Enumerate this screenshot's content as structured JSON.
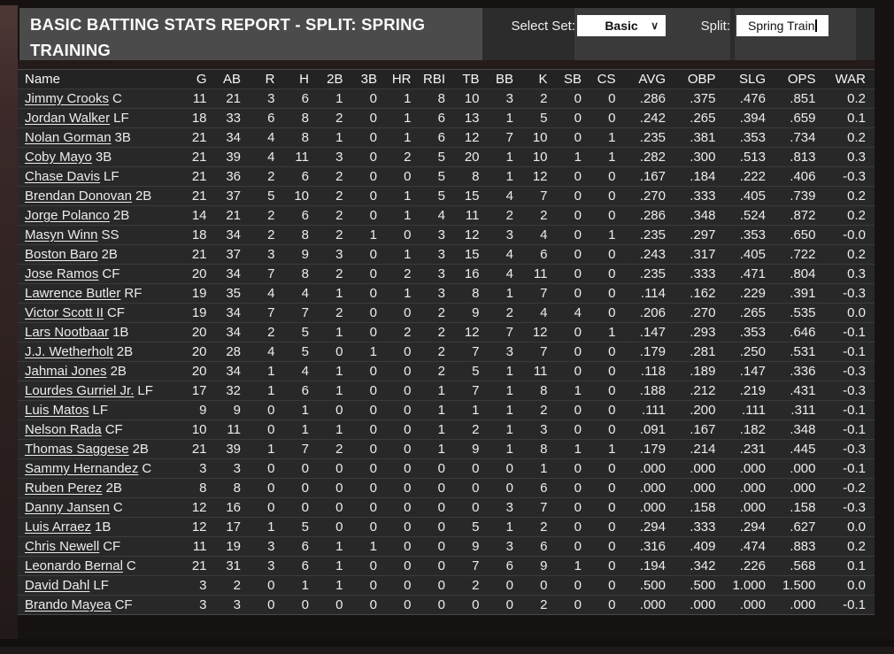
{
  "header": {
    "title": "BASIC BATTING STATS REPORT - SPLIT: SPRING TRAINING",
    "select_set_label": "Select Set:",
    "select_set_value": "Basic",
    "dropdown_chevron": "∨",
    "split_label": "Split:",
    "split_value": "Spring Train"
  },
  "colors": {
    "title_box_bg": "#4b4b4b",
    "header_bar_bg": "#2c2c2c",
    "inset_panel_bg": "#3a3a3a",
    "table_header_bg": "#232323",
    "row_bg": "#282828",
    "row_divider": "#3b3b3b",
    "left_gutter_maroon": "#3a2928",
    "field_bg": "#ffffff"
  },
  "table": {
    "columns": [
      "Name",
      "G",
      "AB",
      "R",
      "H",
      "2B",
      "3B",
      "HR",
      "RBI",
      "TB",
      "BB",
      "K",
      "SB",
      "CS",
      "AVG",
      "OBP",
      "SLG",
      "OPS",
      "WAR"
    ],
    "rows": [
      {
        "name": "Jimmy Crooks",
        "pos": "C",
        "stats": [
          11,
          21,
          3,
          6,
          1,
          0,
          1,
          8,
          10,
          3,
          2,
          0,
          0,
          ".286",
          ".375",
          ".476",
          ".851",
          "0.2"
        ]
      },
      {
        "name": "Jordan Walker",
        "pos": "LF",
        "stats": [
          18,
          33,
          6,
          8,
          2,
          0,
          1,
          6,
          13,
          1,
          5,
          0,
          0,
          ".242",
          ".265",
          ".394",
          ".659",
          "0.1"
        ]
      },
      {
        "name": "Nolan Gorman",
        "pos": "3B",
        "stats": [
          21,
          34,
          4,
          8,
          1,
          0,
          1,
          6,
          12,
          7,
          10,
          0,
          1,
          ".235",
          ".381",
          ".353",
          ".734",
          "0.2"
        ]
      },
      {
        "name": "Coby Mayo",
        "pos": "3B",
        "stats": [
          21,
          39,
          4,
          11,
          3,
          0,
          2,
          5,
          20,
          1,
          10,
          1,
          1,
          ".282",
          ".300",
          ".513",
          ".813",
          "0.3"
        ]
      },
      {
        "name": "Chase Davis",
        "pos": "LF",
        "stats": [
          21,
          36,
          2,
          6,
          2,
          0,
          0,
          5,
          8,
          1,
          12,
          0,
          0,
          ".167",
          ".184",
          ".222",
          ".406",
          "-0.3"
        ]
      },
      {
        "name": "Brendan Donovan",
        "pos": "2B",
        "stats": [
          21,
          37,
          5,
          10,
          2,
          0,
          1,
          5,
          15,
          4,
          7,
          0,
          0,
          ".270",
          ".333",
          ".405",
          ".739",
          "0.2"
        ]
      },
      {
        "name": "Jorge Polanco",
        "pos": "2B",
        "stats": [
          14,
          21,
          2,
          6,
          2,
          0,
          1,
          4,
          11,
          2,
          2,
          0,
          0,
          ".286",
          ".348",
          ".524",
          ".872",
          "0.2"
        ]
      },
      {
        "name": "Masyn Winn",
        "pos": "SS",
        "stats": [
          18,
          34,
          2,
          8,
          2,
          1,
          0,
          3,
          12,
          3,
          4,
          0,
          1,
          ".235",
          ".297",
          ".353",
          ".650",
          "-0.0"
        ]
      },
      {
        "name": "Boston Baro",
        "pos": "2B",
        "stats": [
          21,
          37,
          3,
          9,
          3,
          0,
          1,
          3,
          15,
          4,
          6,
          0,
          0,
          ".243",
          ".317",
          ".405",
          ".722",
          "0.2"
        ]
      },
      {
        "name": "Jose Ramos",
        "pos": "CF",
        "stats": [
          20,
          34,
          7,
          8,
          2,
          0,
          2,
          3,
          16,
          4,
          11,
          0,
          0,
          ".235",
          ".333",
          ".471",
          ".804",
          "0.3"
        ]
      },
      {
        "name": "Lawrence Butler",
        "pos": "RF",
        "stats": [
          19,
          35,
          4,
          4,
          1,
          0,
          1,
          3,
          8,
          1,
          7,
          0,
          0,
          ".114",
          ".162",
          ".229",
          ".391",
          "-0.3"
        ]
      },
      {
        "name": "Victor Scott II",
        "pos": "CF",
        "stats": [
          19,
          34,
          7,
          7,
          2,
          0,
          0,
          2,
          9,
          2,
          4,
          4,
          0,
          ".206",
          ".270",
          ".265",
          ".535",
          "0.0"
        ]
      },
      {
        "name": "Lars Nootbaar",
        "pos": "1B",
        "stats": [
          20,
          34,
          2,
          5,
          1,
          0,
          2,
          2,
          12,
          7,
          12,
          0,
          1,
          ".147",
          ".293",
          ".353",
          ".646",
          "-0.1"
        ]
      },
      {
        "name": "J.J. Wetherholt",
        "pos": "2B",
        "stats": [
          20,
          28,
          4,
          5,
          0,
          1,
          0,
          2,
          7,
          3,
          7,
          0,
          0,
          ".179",
          ".281",
          ".250",
          ".531",
          "-0.1"
        ]
      },
      {
        "name": "Jahmai Jones",
        "pos": "2B",
        "stats": [
          20,
          34,
          1,
          4,
          1,
          0,
          0,
          2,
          5,
          1,
          11,
          0,
          0,
          ".118",
          ".189",
          ".147",
          ".336",
          "-0.3"
        ]
      },
      {
        "name": "Lourdes Gurriel Jr.",
        "pos": "LF",
        "stats": [
          17,
          32,
          1,
          6,
          1,
          0,
          0,
          1,
          7,
          1,
          8,
          1,
          0,
          ".188",
          ".212",
          ".219",
          ".431",
          "-0.3"
        ]
      },
      {
        "name": "Luis Matos",
        "pos": "LF",
        "stats": [
          9,
          9,
          0,
          1,
          0,
          0,
          0,
          1,
          1,
          1,
          2,
          0,
          0,
          ".111",
          ".200",
          ".111",
          ".311",
          "-0.1"
        ]
      },
      {
        "name": "Nelson Rada",
        "pos": "CF",
        "stats": [
          10,
          11,
          0,
          1,
          1,
          0,
          0,
          1,
          2,
          1,
          3,
          0,
          0,
          ".091",
          ".167",
          ".182",
          ".348",
          "-0.1"
        ]
      },
      {
        "name": "Thomas Saggese",
        "pos": "2B",
        "stats": [
          21,
          39,
          1,
          7,
          2,
          0,
          0,
          1,
          9,
          1,
          8,
          1,
          1,
          ".179",
          ".214",
          ".231",
          ".445",
          "-0.3"
        ]
      },
      {
        "name": "Sammy Hernandez",
        "pos": "C",
        "stats": [
          3,
          3,
          0,
          0,
          0,
          0,
          0,
          0,
          0,
          0,
          1,
          0,
          0,
          ".000",
          ".000",
          ".000",
          ".000",
          "-0.1"
        ]
      },
      {
        "name": "Ruben Perez",
        "pos": "2B",
        "stats": [
          8,
          8,
          0,
          0,
          0,
          0,
          0,
          0,
          0,
          0,
          6,
          0,
          0,
          ".000",
          ".000",
          ".000",
          ".000",
          "-0.2"
        ]
      },
      {
        "name": "Danny Jansen",
        "pos": "C",
        "stats": [
          12,
          16,
          0,
          0,
          0,
          0,
          0,
          0,
          0,
          3,
          7,
          0,
          0,
          ".000",
          ".158",
          ".000",
          ".158",
          "-0.3"
        ]
      },
      {
        "name": "Luis Arraez",
        "pos": "1B",
        "stats": [
          12,
          17,
          1,
          5,
          0,
          0,
          0,
          0,
          5,
          1,
          2,
          0,
          0,
          ".294",
          ".333",
          ".294",
          ".627",
          "0.0"
        ]
      },
      {
        "name": "Chris Newell",
        "pos": "CF",
        "stats": [
          11,
          19,
          3,
          6,
          1,
          1,
          0,
          0,
          9,
          3,
          6,
          0,
          0,
          ".316",
          ".409",
          ".474",
          ".883",
          "0.2"
        ]
      },
      {
        "name": "Leonardo Bernal",
        "pos": "C",
        "stats": [
          21,
          31,
          3,
          6,
          1,
          0,
          0,
          0,
          7,
          6,
          9,
          1,
          0,
          ".194",
          ".342",
          ".226",
          ".568",
          "0.1"
        ]
      },
      {
        "name": "David Dahl",
        "pos": "LF",
        "stats": [
          3,
          2,
          0,
          1,
          1,
          0,
          0,
          0,
          2,
          0,
          0,
          0,
          0,
          ".500",
          ".500",
          "1.000",
          "1.500",
          "0.0"
        ]
      },
      {
        "name": "Brando Mayea",
        "pos": "CF",
        "stats": [
          3,
          3,
          0,
          0,
          0,
          0,
          0,
          0,
          0,
          0,
          2,
          0,
          0,
          ".000",
          ".000",
          ".000",
          ".000",
          "-0.1"
        ]
      }
    ]
  }
}
